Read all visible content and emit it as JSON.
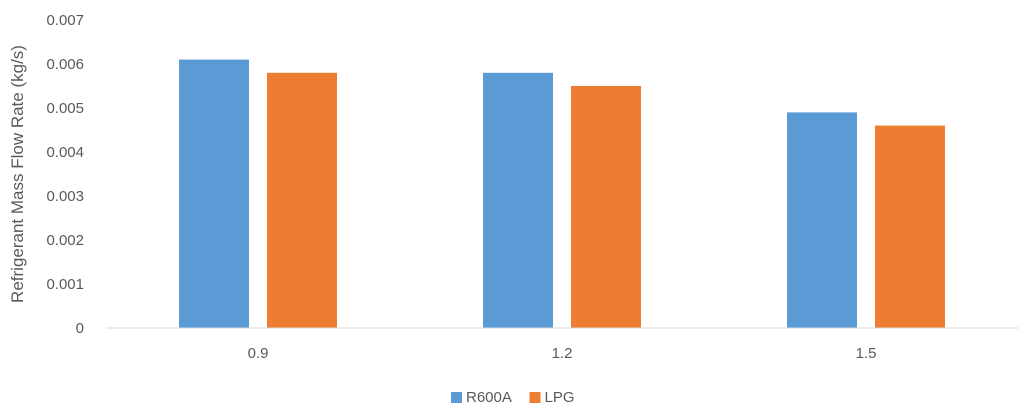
{
  "chart_data": {
    "type": "bar",
    "title": "",
    "xlabel": "",
    "ylabel": "Refrigerant Mass Flow Rate (kg/s)",
    "categories": [
      "0.9",
      "1.2",
      "1.5"
    ],
    "series": [
      {
        "name": "R600A",
        "color": "#5B9BD5",
        "values": [
          0.0061,
          0.0058,
          0.0049
        ]
      },
      {
        "name": "LPG",
        "color": "#ED7D31",
        "values": [
          0.0058,
          0.0055,
          0.0046
        ]
      }
    ],
    "ylim": [
      0,
      0.007
    ],
    "yticks": [
      "0",
      "0.001",
      "0.002",
      "0.003",
      "0.004",
      "0.005",
      "0.006",
      "0.007"
    ],
    "grid": false,
    "legend_position": "bottom"
  }
}
